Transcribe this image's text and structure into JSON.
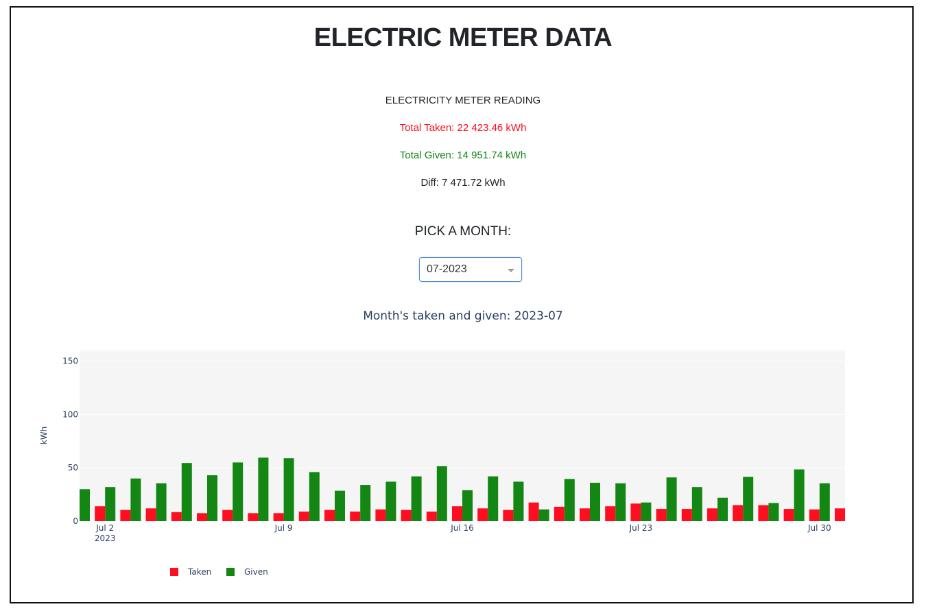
{
  "header": {
    "title": "ELECTRIC METER DATA"
  },
  "reading": {
    "heading": "ELECTRICITY METER READING",
    "taken": "Total Taken: 22 423.46 kWh",
    "given": "Total Given: 14 951.74 kWh",
    "diff": "Diff: 7 471.72 kWh"
  },
  "picker": {
    "label": "PICK A MONTH:",
    "selected": "07-2023"
  },
  "colors": {
    "taken": "#ff0e1f",
    "given": "#138613",
    "plot_bg": "#f5f5f5",
    "grid": "#ffffff",
    "axis_text": "#2a3f5f"
  },
  "chart_data": {
    "type": "bar",
    "title": "Month's taken and given: 2023-07",
    "ylabel": "kWh",
    "ylim": [
      0,
      160
    ],
    "yticks": [
      0,
      50,
      100,
      150
    ],
    "xticks": [
      {
        "label": "Jul 2",
        "sub": "2023",
        "date": "2023-07-02"
      },
      {
        "label": "Jul 9",
        "date": "2023-07-09"
      },
      {
        "label": "Jul 16",
        "date": "2023-07-16"
      },
      {
        "label": "Jul 23",
        "date": "2023-07-23"
      },
      {
        "label": "Jul 30",
        "date": "2023-07-30"
      }
    ],
    "legend_position": "bottom-left",
    "categories": [
      "2023-07-01",
      "2023-07-02",
      "2023-07-03",
      "2023-07-04",
      "2023-07-05",
      "2023-07-06",
      "2023-07-07",
      "2023-07-08",
      "2023-07-09",
      "2023-07-10",
      "2023-07-11",
      "2023-07-12",
      "2023-07-13",
      "2023-07-14",
      "2023-07-15",
      "2023-07-16",
      "2023-07-17",
      "2023-07-18",
      "2023-07-19",
      "2023-07-20",
      "2023-07-21",
      "2023-07-22",
      "2023-07-23",
      "2023-07-24",
      "2023-07-25",
      "2023-07-26",
      "2023-07-27",
      "2023-07-28",
      "2023-07-29",
      "2023-07-30",
      "2023-07-31"
    ],
    "series": [
      {
        "name": "Taken",
        "values": [
          null,
          14,
          10.5,
          12,
          8.5,
          7.5,
          10.5,
          7.5,
          7.5,
          9,
          10.5,
          9,
          11,
          10.5,
          9,
          14,
          12,
          10.5,
          17.5,
          13.5,
          12,
          14,
          16.5,
          11.5,
          11.5,
          12,
          15,
          15,
          11.5,
          11,
          12
        ]
      },
      {
        "name": "Given",
        "values": [
          30,
          32,
          40,
          35.5,
          54.5,
          43,
          55,
          59.5,
          59,
          46,
          28.5,
          34,
          37,
          42,
          51.5,
          29,
          42,
          37,
          11,
          39.5,
          36,
          35.5,
          17.5,
          41,
          32,
          22,
          41.5,
          17,
          48.5,
          35.5,
          null
        ]
      }
    ]
  }
}
